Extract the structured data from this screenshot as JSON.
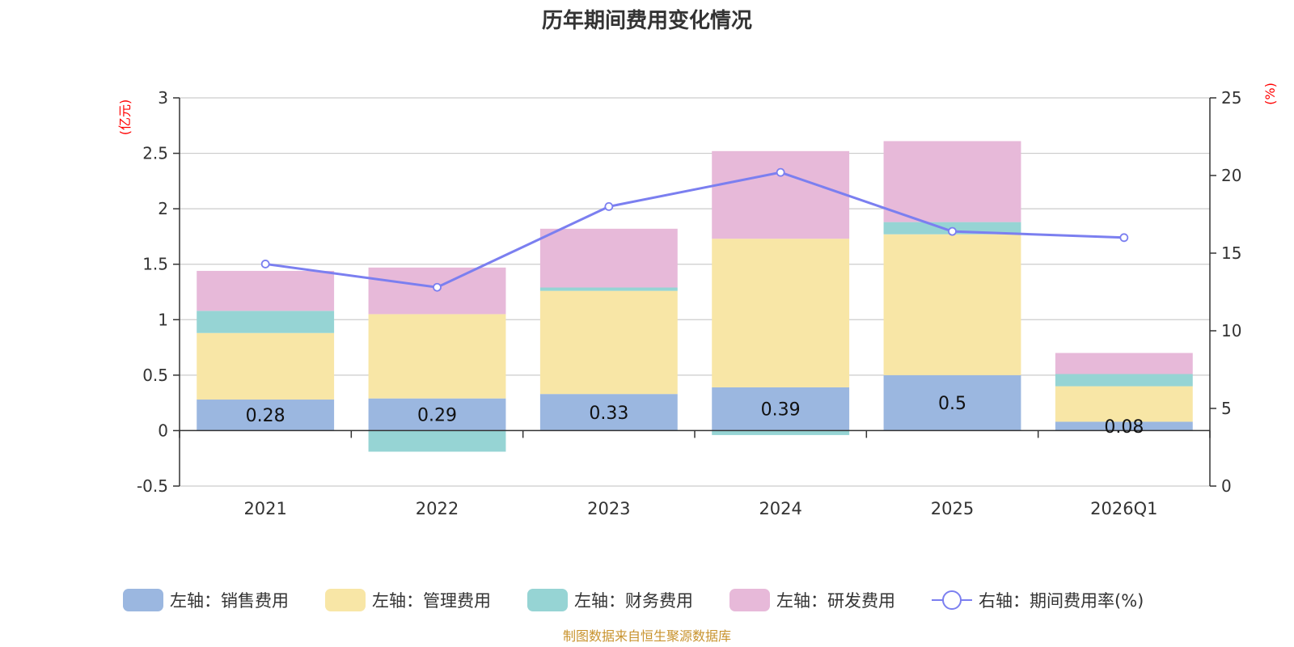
{
  "chart_data": {
    "type": "bar",
    "stacked": true,
    "title": "历年期间费用变化情况",
    "categories": [
      "2021",
      "2022",
      "2023",
      "2024",
      "2025",
      "2026Q1"
    ],
    "left_axis": {
      "unit": "(亿元)",
      "ylim": [
        -0.5,
        3
      ],
      "ticks": [
        3,
        2.5,
        2,
        1.5,
        1,
        0.5,
        0,
        -0.5
      ],
      "tick_labels": [
        "3",
        "2.5",
        "2",
        "1.5",
        "1",
        "0.5",
        "0",
        "-0.5"
      ]
    },
    "right_axis": {
      "unit": "(%)",
      "ylim": [
        0,
        25
      ],
      "ticks": [
        25,
        20,
        15,
        10,
        5,
        0
      ],
      "tick_labels": [
        "25",
        "20",
        "15",
        "10",
        "5",
        "0"
      ]
    },
    "series": [
      {
        "name": "左轴：销售费用",
        "key": "sales",
        "axis": "left",
        "color": "#9bb7e0",
        "values": [
          0.28,
          0.29,
          0.33,
          0.39,
          0.5,
          0.08
        ],
        "labels": [
          "0.28",
          "0.29",
          "0.33",
          "0.39",
          "0.5",
          "0.08"
        ]
      },
      {
        "name": "左轴：管理费用",
        "key": "admin",
        "axis": "left",
        "color": "#f8e6a6",
        "values": [
          0.6,
          0.76,
          0.93,
          1.34,
          1.27,
          0.32
        ]
      },
      {
        "name": "左轴：财务费用",
        "key": "finance",
        "axis": "left",
        "color": "#96d4d4",
        "values": [
          0.2,
          -0.19,
          0.03,
          -0.04,
          0.11,
          0.11
        ]
      },
      {
        "name": "左轴：研发费用",
        "key": "rnd",
        "axis": "left",
        "color": "#e7b9d9",
        "values": [
          0.36,
          0.42,
          0.53,
          0.79,
          0.73,
          0.19
        ]
      },
      {
        "name": "右轴：期间费用率(%)",
        "key": "rate",
        "axis": "right",
        "type": "line",
        "color": "#7b7ff0",
        "values": [
          14.3,
          12.8,
          18.0,
          20.2,
          16.4,
          16.0
        ]
      }
    ],
    "legend_position": "bottom",
    "grid": true
  },
  "source": {
    "text": "制图数据来自恒生聚源数据库",
    "color": "#c8932e"
  },
  "colors": {
    "axis": "#333333",
    "grid": "#cccccc",
    "unit": "#ff0000"
  }
}
